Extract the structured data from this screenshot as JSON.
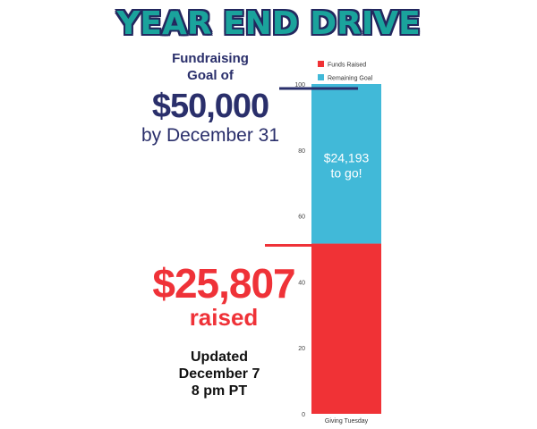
{
  "title": "YEAR END DRIVE",
  "goal": {
    "label_line1": "Fundraising",
    "label_line2": "Goal of",
    "amount": "$50,000",
    "date": "by December 31"
  },
  "raised": {
    "amount": "$25,807",
    "word": "raised"
  },
  "updated": {
    "line1": "Updated",
    "line2": "December 7",
    "line3": "8 pm PT"
  },
  "chart_data": {
    "type": "bar",
    "stacked": true,
    "categories": [
      "Giving Tuesday"
    ],
    "series": [
      {
        "name": "Funds Raised",
        "values": [
          51.614
        ],
        "color": "#f03236"
      },
      {
        "name": "Remaining Goal",
        "values": [
          48.386
        ],
        "color": "#41b9d8"
      }
    ],
    "ylim": [
      0,
      100
    ],
    "yticks": [
      0,
      20,
      40,
      60,
      80,
      100
    ],
    "legend_position": "top-right",
    "annotation": {
      "line1": "$24,193",
      "line2": "to go!"
    },
    "marker_colors": {
      "goal": "#2a2f6b",
      "raised": "#ef3238"
    }
  }
}
